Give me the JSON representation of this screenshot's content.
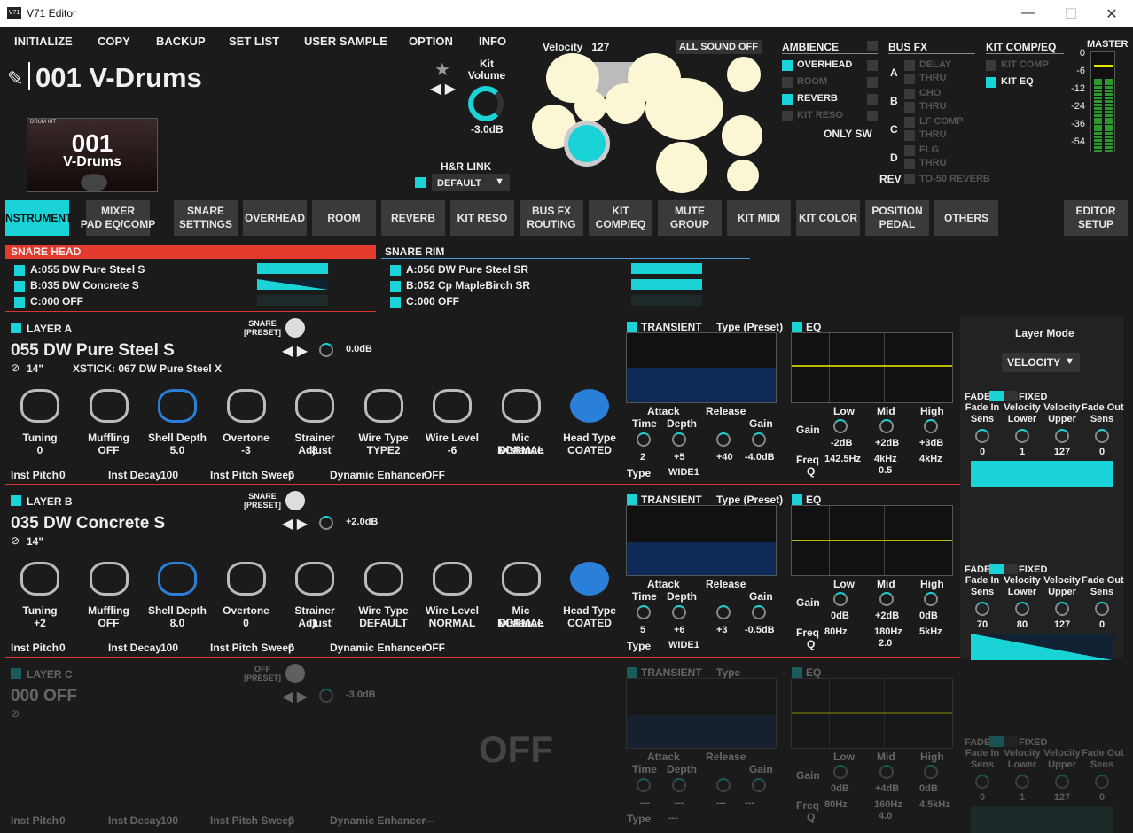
{
  "window": {
    "app_icon": "V71",
    "title": "V71 Editor",
    "min": "—",
    "max": "☐",
    "close": "✕"
  },
  "menu": [
    "INITIALIZE",
    "COPY",
    "BACKUP",
    "SET LIST",
    "USER SAMPLE",
    "OPTION",
    "INFO"
  ],
  "kit": {
    "name": "001 V-Drums",
    "thumb_label": "DRUM KIT",
    "thumb_num": "001",
    "thumb_name": "V-Drums",
    "volume_label": "Kit\nVolume",
    "volume_value": "-3.0dB",
    "hr_link_label": "H&R LINK",
    "hr_link_value": "DEFAULT"
  },
  "velocity": {
    "label": "Velocity",
    "value": "127",
    "all_sound_off": "ALL SOUND OFF"
  },
  "ambience": {
    "title": "AMBIENCE",
    "items": [
      {
        "label": "OVERHEAD",
        "on": true
      },
      {
        "label": "ROOM",
        "on": false
      },
      {
        "label": "REVERB",
        "on": true
      },
      {
        "label": "KIT RESO",
        "on": false
      }
    ],
    "only_sw": "ONLY SW"
  },
  "busfx": {
    "title": "BUS FX",
    "rows": [
      {
        "id": "A",
        "fx": [
          "DELAY",
          "THRU"
        ]
      },
      {
        "id": "B",
        "fx": [
          "CHO",
          "THRU"
        ]
      },
      {
        "id": "C",
        "fx": [
          "LF COMP",
          "THRU"
        ]
      },
      {
        "id": "D",
        "fx": [
          "FLG",
          "THRU"
        ]
      }
    ],
    "rev_label": "REV",
    "rev_value": "TO-50 REVERB"
  },
  "kitcomp": {
    "title": "KIT COMP/EQ",
    "items": [
      {
        "label": "KIT COMP",
        "on": false
      },
      {
        "label": "KIT EQ",
        "on": true
      }
    ]
  },
  "master": {
    "title": "MASTER",
    "scale": [
      "0",
      "-6",
      "-12",
      "-24",
      "-36",
      "-54"
    ]
  },
  "tabs": [
    "INSTRUMENT",
    "MIXER\nPAD EQ/COMP",
    "SNARE\nSETTINGS",
    "OVERHEAD",
    "ROOM",
    "REVERB",
    "KIT RESO",
    "BUS FX\nROUTING",
    "KIT\nCOMP/EQ",
    "MUTE\nGROUP",
    "KIT MIDI",
    "KIT COLOR",
    "POSITION\nPEDAL",
    "OTHERS",
    "EDITOR\nSETUP"
  ],
  "snare_head": {
    "title": "SNARE HEAD",
    "items": [
      "A:055 DW Pure Steel S",
      "B:035 DW Concrete S",
      "C:000 OFF"
    ]
  },
  "snare_rim": {
    "title": "SNARE RIM",
    "items": [
      "A:056 DW Pure Steel SR",
      "B:052 Cp MapleBirch SR",
      "C:000 OFF"
    ]
  },
  "layers": [
    {
      "label": "LAYER A",
      "type_top": "SNARE",
      "type_bot": "[PRESET]",
      "name": "055 DW Pure Steel S",
      "gain": "0.0dB",
      "size": "14\"",
      "xstick": "XSTICK: 067 DW Pure Steel X",
      "params": [
        {
          "label": "Tuning",
          "value": "0"
        },
        {
          "label": "Muffling",
          "value": "OFF"
        },
        {
          "label": "Shell Depth",
          "value": "5.0"
        },
        {
          "label": "Overtone",
          "value": "-3"
        },
        {
          "label": "Strainer Adjust",
          "value": "8"
        },
        {
          "label": "Wire Type",
          "value": "TYPE2"
        },
        {
          "label": "Wire Level",
          "value": "-6"
        },
        {
          "label": "Mic Distance",
          "value": "NORMAL"
        },
        {
          "label": "Head Type",
          "value": "COATED"
        }
      ],
      "bottom": {
        "inst_pitch_label": "Inst Pitch",
        "inst_pitch": "0",
        "inst_decay_label": "Inst Decay",
        "inst_decay": "100",
        "sweep_label": "Inst Pitch Sweep",
        "sweep": "0",
        "enh_label": "Dynamic Enhancer",
        "enh": "OFF"
      },
      "transient": {
        "title": "TRANSIENT",
        "type": "Type (Preset)",
        "attack": "Attack",
        "release": "Release",
        "time_label": "Time",
        "depth_label": "Depth",
        "gain_label": "Gain",
        "time": "2",
        "depth": "+5",
        "rdepth": "+40",
        "gain": "-4.0dB",
        "type_label": "Type",
        "type_val": "WIDE1"
      },
      "eq": {
        "title": "EQ",
        "low": "Low",
        "mid": "Mid",
        "high": "High",
        "gain_label": "Gain",
        "freq_label": "Freq",
        "q_label": "Q",
        "lg": "-2dB",
        "mg": "+2dB",
        "hg": "+3dB",
        "lf": "142.5Hz",
        "mf": "4kHz",
        "hf": "4kHz",
        "q": "0.5"
      },
      "fade": {
        "fade": "FADE",
        "fixed": "FIXED",
        "cols": [
          "Fade In\nSens",
          "Velocity\nLower",
          "Velocity\nUpper",
          "Fade Out\nSens"
        ],
        "vals": [
          "0",
          "1",
          "127",
          "0"
        ]
      }
    },
    {
      "label": "LAYER B",
      "type_top": "SNARE",
      "type_bot": "[PRESET]",
      "name": "035 DW Concrete S",
      "gain": "+2.0dB",
      "size": "14\"",
      "xstick": "",
      "params": [
        {
          "label": "Tuning",
          "value": "+2"
        },
        {
          "label": "Muffling",
          "value": "OFF"
        },
        {
          "label": "Shell Depth",
          "value": "8.0"
        },
        {
          "label": "Overtone",
          "value": "0"
        },
        {
          "label": "Strainer Adjust",
          "value": "1"
        },
        {
          "label": "Wire Type",
          "value": "DEFAULT"
        },
        {
          "label": "Wire Level",
          "value": "NORMAL"
        },
        {
          "label": "Mic Distance",
          "value": "NORMAL"
        },
        {
          "label": "Head Type",
          "value": "COATED"
        }
      ],
      "bottom": {
        "inst_pitch_label": "Inst Pitch",
        "inst_pitch": "0",
        "inst_decay_label": "Inst Decay",
        "inst_decay": "100",
        "sweep_label": "Inst Pitch Sweep",
        "sweep": "0",
        "enh_label": "Dynamic Enhancer",
        "enh": "OFF"
      },
      "transient": {
        "title": "TRANSIENT",
        "type": "Type (Preset)",
        "attack": "Attack",
        "release": "Release",
        "time_label": "Time",
        "depth_label": "Depth",
        "gain_label": "Gain",
        "time": "5",
        "depth": "+6",
        "rdepth": "+3",
        "gain": "-0.5dB",
        "type_label": "Type",
        "type_val": "WIDE1"
      },
      "eq": {
        "title": "EQ",
        "low": "Low",
        "mid": "Mid",
        "high": "High",
        "gain_label": "Gain",
        "freq_label": "Freq",
        "q_label": "Q",
        "lg": "0dB",
        "mg": "+2dB",
        "hg": "0dB",
        "lf": "80Hz",
        "mf": "180Hz",
        "hf": "5kHz",
        "q": "2.0"
      },
      "fade": {
        "fade": "FADE",
        "fixed": "FIXED",
        "cols": [
          "Fade In\nSens",
          "Velocity\nLower",
          "Velocity\nUpper",
          "Fade Out\nSens"
        ],
        "vals": [
          "70",
          "80",
          "127",
          "0"
        ]
      }
    },
    {
      "label": "LAYER C",
      "type_top": "OFF",
      "type_bot": "[PRESET]",
      "name": "000 OFF",
      "gain": "-3.0dB",
      "size": "",
      "xstick": "",
      "params": [],
      "bottom": {
        "inst_pitch_label": "Inst Pitch",
        "inst_pitch": "0",
        "inst_decay_label": "Inst Decay",
        "inst_decay": "100",
        "sweep_label": "Inst Pitch Sweep",
        "sweep": "0",
        "enh_label": "Dynamic Enhancer",
        "enh": "---"
      },
      "transient": {
        "title": "TRANSIENT",
        "type": "Type",
        "attack": "Attack",
        "release": "Release",
        "time_label": "Time",
        "depth_label": "Depth",
        "gain_label": "Gain",
        "time": "---",
        "depth": "---",
        "rdepth": "---",
        "gain": "---",
        "type_label": "Type",
        "type_val": "---"
      },
      "eq": {
        "title": "EQ",
        "low": "Low",
        "mid": "Mid",
        "high": "High",
        "gain_label": "Gain",
        "freq_label": "Freq",
        "q_label": "Q",
        "lg": "0dB",
        "mg": "+4dB",
        "hg": "0dB",
        "lf": "80Hz",
        "mf": "160Hz",
        "hf": "4.5kHz",
        "q": "4.0"
      },
      "fade": {
        "fade": "FADE",
        "fixed": "FIXED",
        "cols": [
          "Fade In\nSens",
          "Velocity\nLower",
          "Velocity\nUpper",
          "Fade Out\nSens"
        ],
        "vals": [
          "0",
          "1",
          "127",
          "0"
        ]
      },
      "overlay": "OFF"
    }
  ],
  "layer_mode": {
    "title": "Layer Mode",
    "value": "VELOCITY"
  }
}
